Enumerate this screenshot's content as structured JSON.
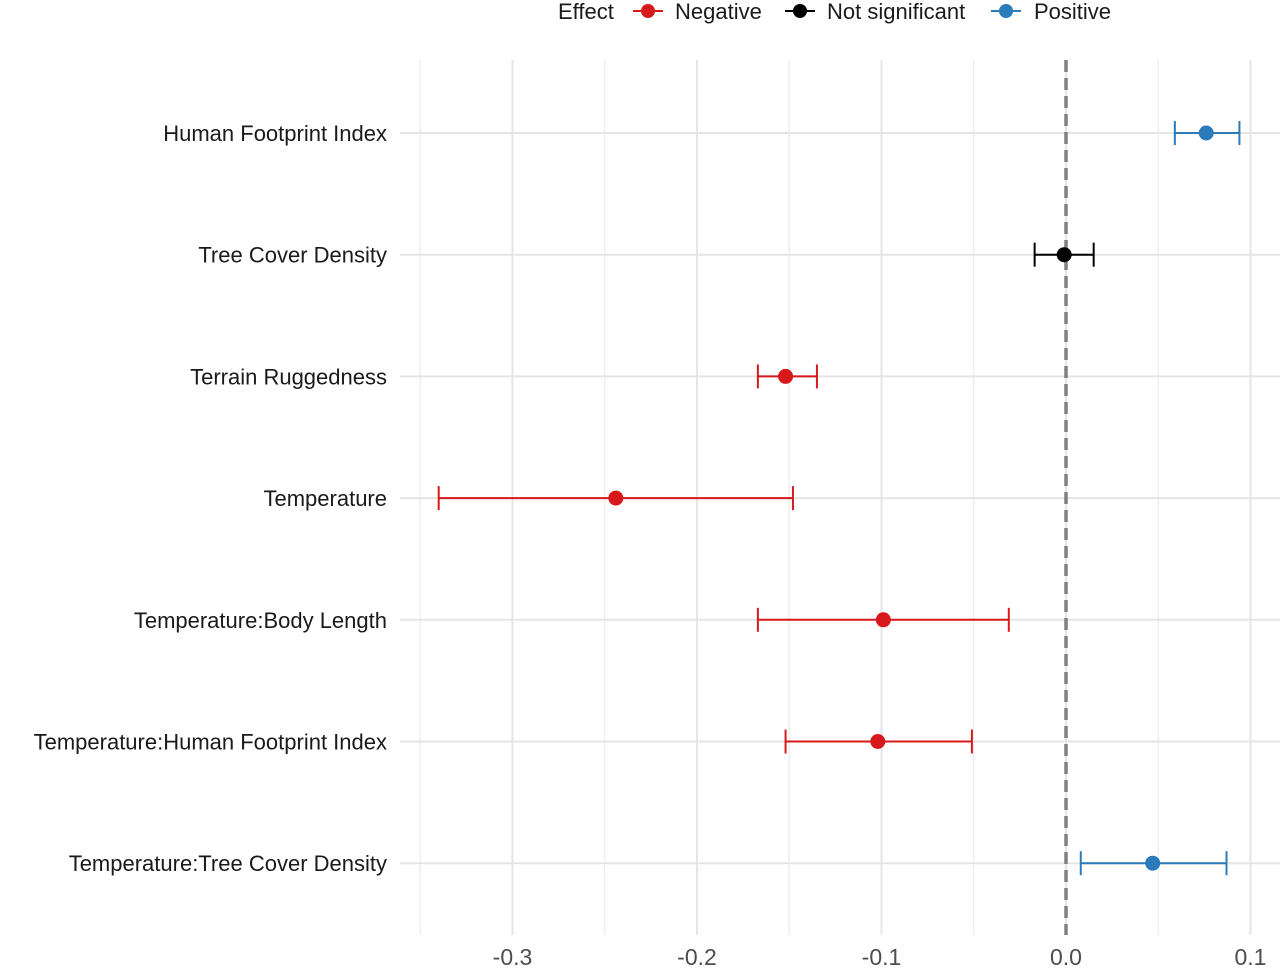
{
  "chart_data": {
    "type": "forest",
    "title": "",
    "xlabel": "",
    "ylabel": "",
    "xlim": [
      -0.361,
      0.116
    ],
    "xticks": [
      "-0.3",
      "-0.2",
      "-0.1",
      "0.0",
      "0.1"
    ],
    "xtick_values": [
      -0.3,
      -0.2,
      -0.1,
      0.0,
      0.1
    ],
    "grid": true,
    "reference_line": {
      "x": 0,
      "style": "dashed",
      "color": "#808080"
    },
    "legend": {
      "title": "Effect",
      "position": "top",
      "entries": [
        {
          "label": "Negative",
          "color": "#d7191c"
        },
        {
          "label": "Not significant",
          "color": "#000000"
        },
        {
          "label": "Positive",
          "color": "#2b7bba"
        }
      ]
    },
    "rows": [
      {
        "label": "Human Footprint Index",
        "estimate": 0.076,
        "low": 0.059,
        "high": 0.094,
        "effect": "Positive"
      },
      {
        "label": "Tree Cover Density",
        "estimate": -0.001,
        "low": -0.017,
        "high": 0.015,
        "effect": "Not significant"
      },
      {
        "label": "Terrain Ruggedness",
        "estimate": -0.152,
        "low": -0.167,
        "high": -0.135,
        "effect": "Negative"
      },
      {
        "label": "Temperature",
        "estimate": -0.244,
        "low": -0.34,
        "high": -0.148,
        "effect": "Negative"
      },
      {
        "label": "Temperature:Body Length",
        "estimate": -0.099,
        "low": -0.167,
        "high": -0.031,
        "effect": "Negative"
      },
      {
        "label": "Temperature:Human Footprint Index",
        "estimate": -0.102,
        "low": -0.152,
        "high": -0.051,
        "effect": "Negative"
      },
      {
        "label": "Temperature:Tree Cover Density",
        "estimate": 0.047,
        "low": 0.008,
        "high": 0.087,
        "effect": "Positive"
      }
    ]
  }
}
